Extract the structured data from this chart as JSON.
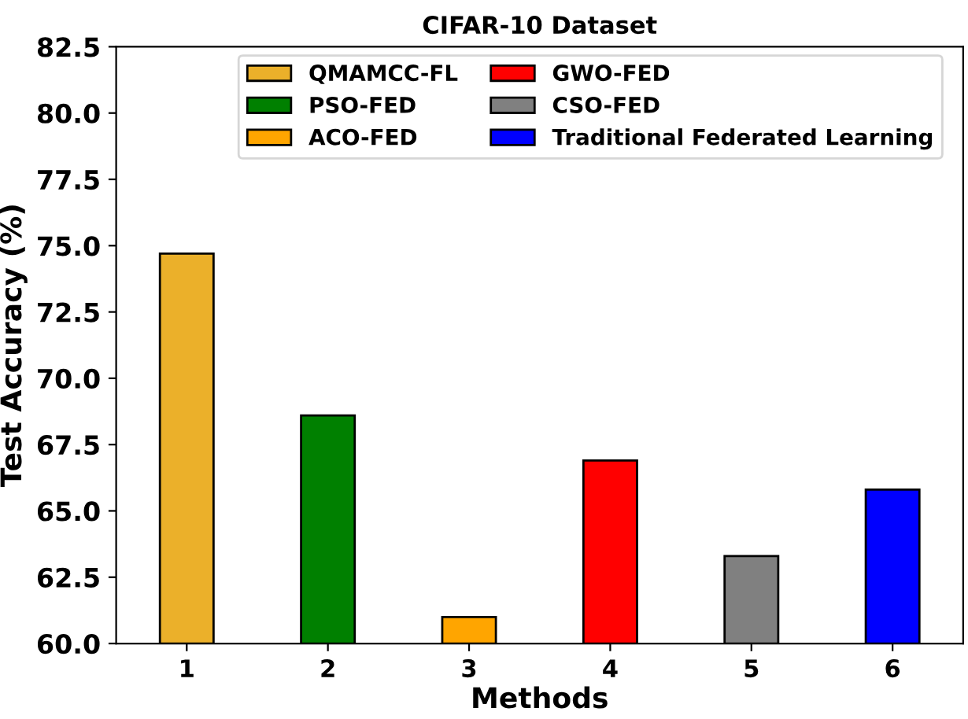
{
  "chart_data": {
    "type": "bar",
    "title": "CIFAR-10 Dataset",
    "xlabel": "Methods",
    "ylabel": "Test Accuracy (%)",
    "categories": [
      "1",
      "2",
      "3",
      "4",
      "5",
      "6"
    ],
    "series": [
      {
        "name": "QMAMCC-FL",
        "color": "#ebb02a",
        "values": [
          74.7,
          null,
          null,
          null,
          null,
          null
        ]
      },
      {
        "name": "PSO-FED",
        "color": "#008000",
        "values": [
          null,
          68.6,
          null,
          null,
          null,
          null
        ]
      },
      {
        "name": "ACO-FED",
        "color": "#ffa500",
        "values": [
          null,
          null,
          61.0,
          null,
          null,
          null
        ]
      },
      {
        "name": "GWO-FED",
        "color": "#ff0000",
        "values": [
          null,
          null,
          null,
          66.9,
          null,
          null
        ]
      },
      {
        "name": "CSO-FED",
        "color": "#808080",
        "values": [
          null,
          null,
          null,
          null,
          63.3,
          null
        ]
      },
      {
        "name": "Traditional Federated Learning",
        "color": "#0000ff",
        "values": [
          null,
          null,
          null,
          null,
          null,
          65.8
        ]
      }
    ],
    "ylim": [
      60.0,
      82.5
    ],
    "yticks": [
      {
        "value": 60,
        "label": "60.0"
      },
      62.5,
      {
        "value": 65,
        "label": "65.0"
      },
      67.5,
      {
        "value": 70,
        "label": "70.0"
      },
      72.5,
      {
        "value": 75,
        "label": "75.0"
      },
      77.5,
      {
        "value": 80,
        "label": "80.0"
      },
      82.5
    ],
    "grid": false,
    "legend": "top"
  }
}
